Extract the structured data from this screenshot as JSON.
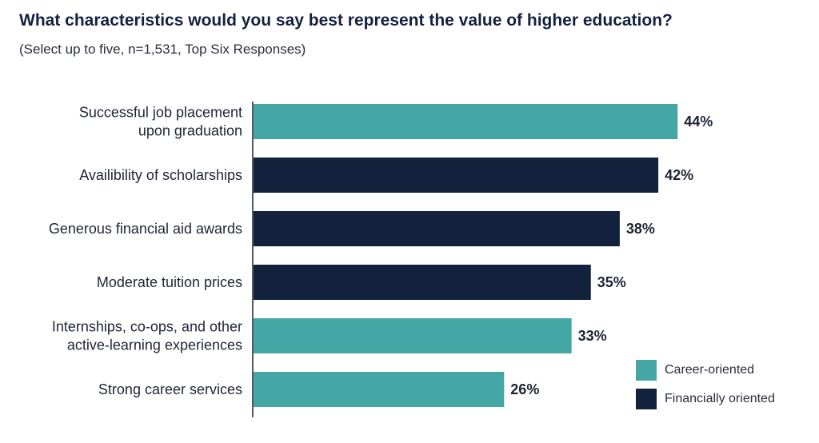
{
  "title": "What characteristics would you say best represent the value of higher education?",
  "subtitle": "(Select up to five, n=1,531, Top Six Responses)",
  "legend": [
    {
      "label": "Career-oriented",
      "color": "#44a6a5"
    },
    {
      "label": "Financially oriented",
      "color": "#12223d"
    }
  ],
  "chart_data": {
    "type": "bar",
    "orientation": "horizontal",
    "categories": [
      [
        "Successful job placement",
        "upon graduation"
      ],
      [
        "Availibility of scholarships"
      ],
      [
        "Generous financial aid awards"
      ],
      [
        "Moderate tuition prices"
      ],
      [
        "Internships, co-ops, and other",
        "active-learning experiences"
      ],
      [
        "Strong career services"
      ]
    ],
    "values": [
      44,
      42,
      38,
      35,
      33,
      26
    ],
    "value_labels": [
      "44%",
      "42%",
      "38%",
      "35%",
      "33%",
      "26%"
    ],
    "groups": [
      "Career-oriented",
      "Financially oriented",
      "Financially oriented",
      "Financially oriented",
      "Career-oriented",
      "Career-oriented"
    ],
    "xlim": [
      0,
      100
    ],
    "grid": false,
    "legend_position": "bottom-right"
  }
}
